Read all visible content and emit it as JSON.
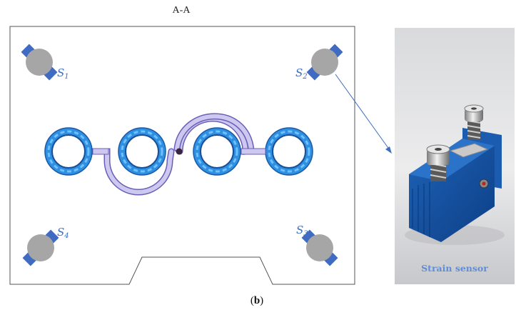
{
  "figure": {
    "section_label": "A-A",
    "caption_paren_open": "(",
    "caption_letter": "b",
    "caption_paren_close": ")"
  },
  "sensors": [
    {
      "id": "S1",
      "base": "S",
      "sub": "1"
    },
    {
      "id": "S2",
      "base": "S",
      "sub": "2"
    },
    {
      "id": "S3",
      "base": "S",
      "sub": "3"
    },
    {
      "id": "S4",
      "base": "S",
      "sub": "4"
    }
  ],
  "photo": {
    "label": "Strain sensor"
  },
  "colors": {
    "sensor_body": "#a6a6a6",
    "sensor_mount": "#3f6cc2",
    "ring": "#2f8fe0",
    "tube": "#c9c4ee",
    "arrow": "#3d6fc0",
    "label": "#5f8dd8"
  }
}
